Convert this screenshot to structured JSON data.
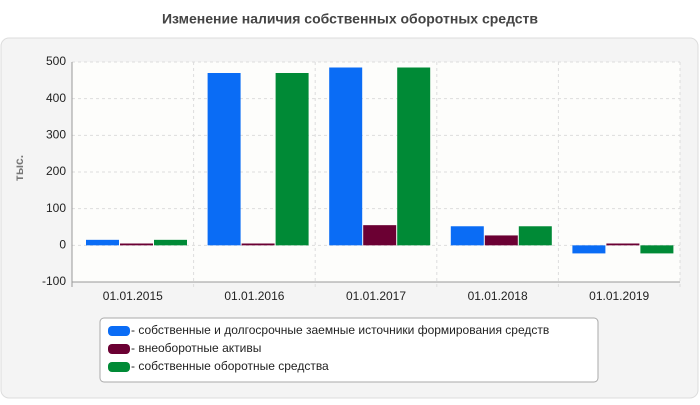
{
  "chart_data": {
    "type": "bar",
    "title": "Изменение наличия собственных оборотных средств",
    "y_label": "тыс.",
    "categories": [
      "01.01.2015",
      "01.01.2016",
      "01.01.2017",
      "01.01.2018",
      "01.01.2019"
    ],
    "series": [
      {
        "name": "- собственные и долгосрочные заемные источники формирования средств",
        "color": "#0a6cf5",
        "values": [
          15,
          470,
          485,
          52,
          -22
        ]
      },
      {
        "name": "- внеоборотные активы",
        "color": "#6b0033",
        "values": [
          5,
          5,
          55,
          27,
          5
        ]
      },
      {
        "name": "- собственные оборотные средства",
        "color": "#008a36",
        "values": [
          15,
          470,
          485,
          52,
          -22
        ]
      }
    ],
    "ylim": [
      -100,
      500
    ],
    "yticks": [
      -100,
      0,
      100,
      200,
      300,
      400,
      500
    ],
    "grid": true,
    "legend": "bottom"
  }
}
